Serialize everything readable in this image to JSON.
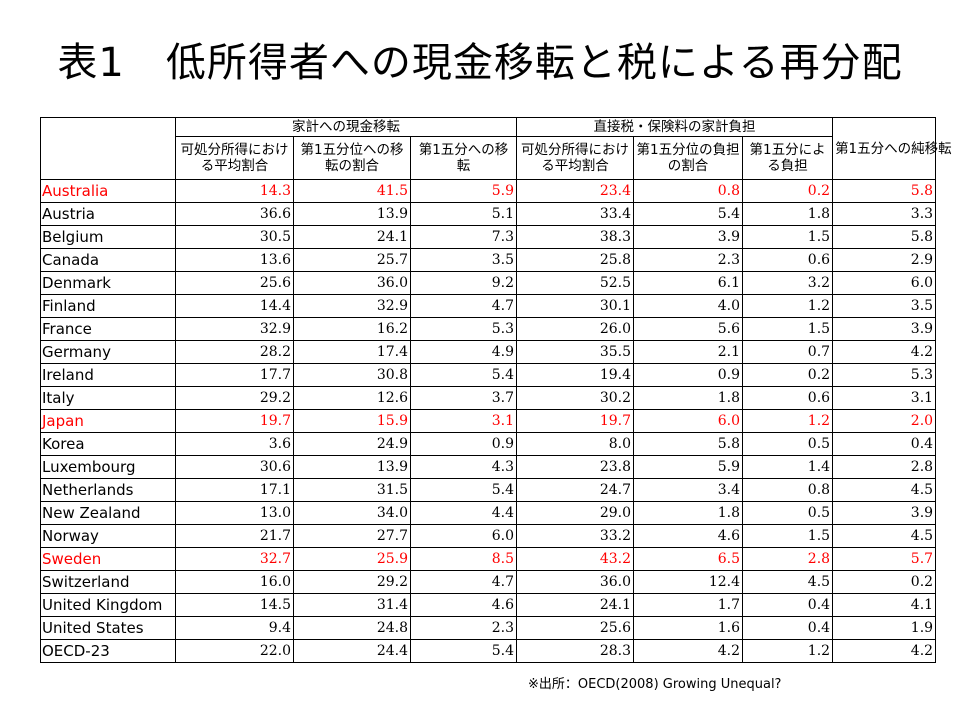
{
  "title": "表1　低所得者への現金移転と税による再分配",
  "table": {
    "group_headers": {
      "cash_transfers": "家計への現金移転",
      "direct_taxes": "直接税・保険料の家計負担"
    },
    "columns": [
      "可処分所得における平均割合",
      "第1五分位への移転の割合",
      "第1五分への移転",
      "可処分所得における平均割合",
      "第1五分位の負担の割合",
      "第1五分による負担",
      "第1五分への純移転"
    ],
    "rows": [
      {
        "country": "Australia",
        "values": [
          "14.3",
          "41.5",
          "5.9",
          "23.4",
          "0.8",
          "0.2",
          "5.8"
        ],
        "highlight": true
      },
      {
        "country": "Austria",
        "values": [
          "36.6",
          "13.9",
          "5.1",
          "33.4",
          "5.4",
          "1.8",
          "3.3"
        ],
        "highlight": false
      },
      {
        "country": "Belgium",
        "values": [
          "30.5",
          "24.1",
          "7.3",
          "38.3",
          "3.9",
          "1.5",
          "5.8"
        ],
        "highlight": false
      },
      {
        "country": "Canada",
        "values": [
          "13.6",
          "25.7",
          "3.5",
          "25.8",
          "2.3",
          "0.6",
          "2.9"
        ],
        "highlight": false
      },
      {
        "country": "Denmark",
        "values": [
          "25.6",
          "36.0",
          "9.2",
          "52.5",
          "6.1",
          "3.2",
          "6.0"
        ],
        "highlight": false
      },
      {
        "country": "Finland",
        "values": [
          "14.4",
          "32.9",
          "4.7",
          "30.1",
          "4.0",
          "1.2",
          "3.5"
        ],
        "highlight": false
      },
      {
        "country": "France",
        "values": [
          "32.9",
          "16.2",
          "5.3",
          "26.0",
          "5.6",
          "1.5",
          "3.9"
        ],
        "highlight": false
      },
      {
        "country": "Germany",
        "values": [
          "28.2",
          "17.4",
          "4.9",
          "35.5",
          "2.1",
          "0.7",
          "4.2"
        ],
        "highlight": false
      },
      {
        "country": "Ireland",
        "values": [
          "17.7",
          "30.8",
          "5.4",
          "19.4",
          "0.9",
          "0.2",
          "5.3"
        ],
        "highlight": false
      },
      {
        "country": "Italy",
        "values": [
          "29.2",
          "12.6",
          "3.7",
          "30.2",
          "1.8",
          "0.6",
          "3.1"
        ],
        "highlight": false
      },
      {
        "country": "Japan",
        "values": [
          "19.7",
          "15.9",
          "3.1",
          "19.7",
          "6.0",
          "1.2",
          "2.0"
        ],
        "highlight": true
      },
      {
        "country": "Korea",
        "values": [
          "3.6",
          "24.9",
          "0.9",
          "8.0",
          "5.8",
          "0.5",
          "0.4"
        ],
        "highlight": false
      },
      {
        "country": "Luxembourg",
        "values": [
          "30.6",
          "13.9",
          "4.3",
          "23.8",
          "5.9",
          "1.4",
          "2.8"
        ],
        "highlight": false
      },
      {
        "country": "Netherlands",
        "values": [
          "17.1",
          "31.5",
          "5.4",
          "24.7",
          "3.4",
          "0.8",
          "4.5"
        ],
        "highlight": false
      },
      {
        "country": "New Zealand",
        "values": [
          "13.0",
          "34.0",
          "4.4",
          "29.0",
          "1.8",
          "0.5",
          "3.9"
        ],
        "highlight": false
      },
      {
        "country": "Norway",
        "values": [
          "21.7",
          "27.7",
          "6.0",
          "33.2",
          "4.6",
          "1.5",
          "4.5"
        ],
        "highlight": false
      },
      {
        "country": "Sweden",
        "values": [
          "32.7",
          "25.9",
          "8.5",
          "43.2",
          "6.5",
          "2.8",
          "5.7"
        ],
        "highlight": true
      },
      {
        "country": "Switzerland",
        "values": [
          "16.0",
          "29.2",
          "4.7",
          "36.0",
          "12.4",
          "4.5",
          "0.2"
        ],
        "highlight": false
      },
      {
        "country": "United Kingdom",
        "values": [
          "14.5",
          "31.4",
          "4.6",
          "24.1",
          "1.7",
          "0.4",
          "4.1"
        ],
        "highlight": false
      },
      {
        "country": "United States",
        "values": [
          "9.4",
          "24.8",
          "2.3",
          "25.6",
          "1.6",
          "0.4",
          "1.9"
        ],
        "highlight": false
      },
      {
        "country": "OECD-23",
        "values": [
          "22.0",
          "24.4",
          "5.4",
          "28.3",
          "4.2",
          "1.2",
          "4.2"
        ],
        "highlight": false
      }
    ]
  },
  "source": "※出所：OECD(2008) Growing Unequal?",
  "colors": {
    "highlight": "#ff0000",
    "text": "#000000",
    "border": "#000000"
  }
}
